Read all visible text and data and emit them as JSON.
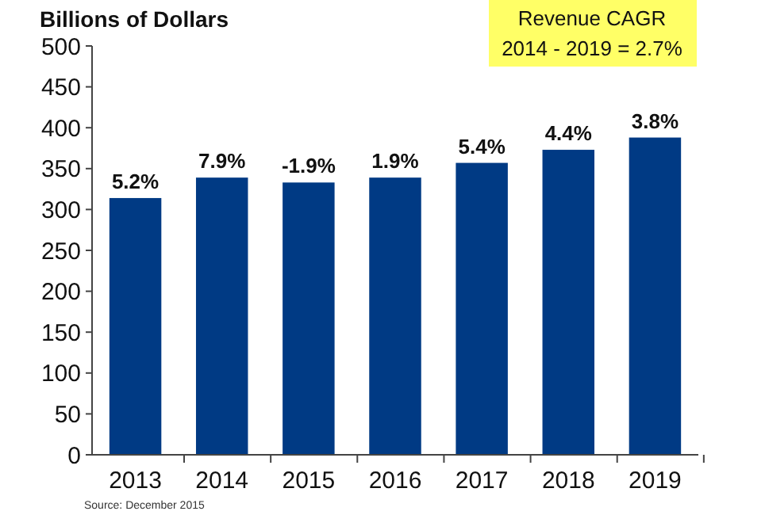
{
  "chart_data": {
    "type": "bar",
    "ylabel": "Billions of Dollars",
    "categories": [
      "2013",
      "2014",
      "2015",
      "2016",
      "2017",
      "2018",
      "2019"
    ],
    "values": [
      314,
      339,
      333,
      339,
      357,
      373,
      388
    ],
    "color": "#003a84",
    "ylim": [
      0,
      500
    ],
    "yticks": [
      0,
      50,
      100,
      150,
      200,
      250,
      300,
      350,
      400,
      450,
      500
    ],
    "grid": false,
    "annotations": [
      "Revenue CAGR",
      "2014 - 2019 = 2.7%",
      "Source: December 2015",
      {
        "text": "5.2%",
        "x": "2013",
        "y": 314
      },
      {
        "text": "7.9%",
        "x": "2014",
        "y": 339
      },
      {
        "text": "-1.9%",
        "x": "2015",
        "y": 333
      },
      {
        "text": "1.9%",
        "x": "2016",
        "y": 339
      },
      {
        "text": "5.4%",
        "x": "2017",
        "y": 357
      },
      {
        "text": "4.4%",
        "x": "2018",
        "y": 373
      },
      {
        "text": "3.8%",
        "x": "2019",
        "y": 388
      }
    ]
  }
}
